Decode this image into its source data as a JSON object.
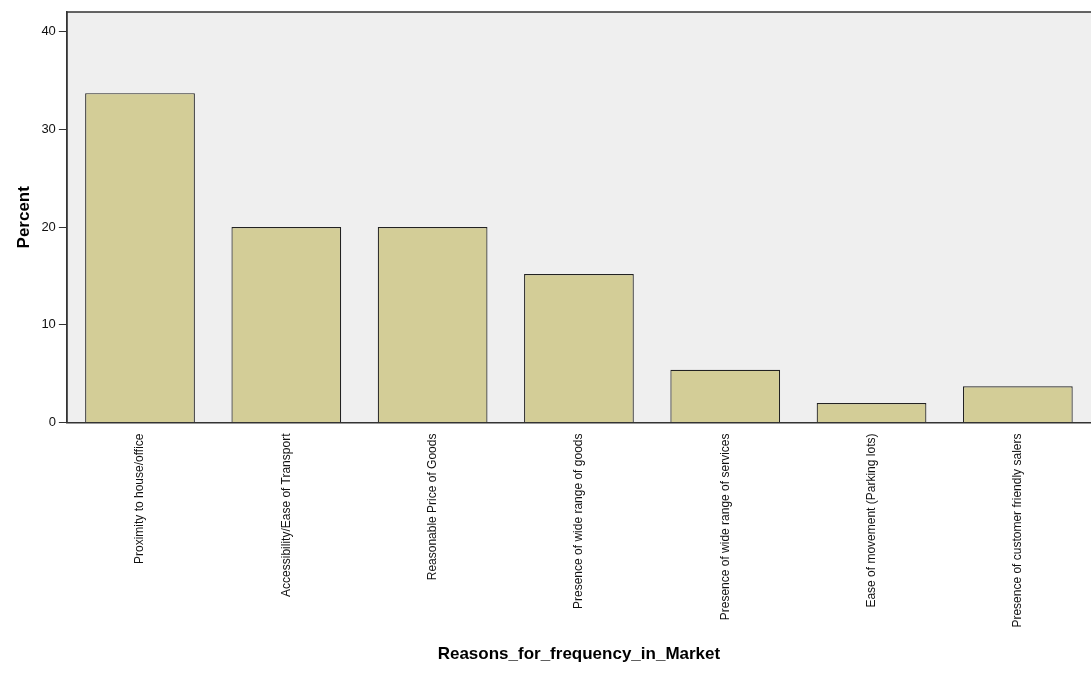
{
  "chart_data": {
    "type": "bar",
    "xlabel": "Reasons_for_frequency_in_Market",
    "ylabel": "Percent",
    "categories": [
      "Proximity to house/office",
      "Accessibility/Ease of Transport",
      "Reasonable Price of Goods",
      "Presence of wide range of goods",
      "Presence of wide range of services",
      "Ease of movement (Parking lots)",
      "Presence of customer friendly salers"
    ],
    "values": [
      33.7,
      20,
      20,
      15.2,
      5.4,
      2,
      3.7
    ],
    "color": "#d3cd97",
    "ylim": [
      0,
      42
    ],
    "yticks": [
      0,
      10,
      20,
      30,
      40
    ],
    "grid": false,
    "legend": false
  }
}
